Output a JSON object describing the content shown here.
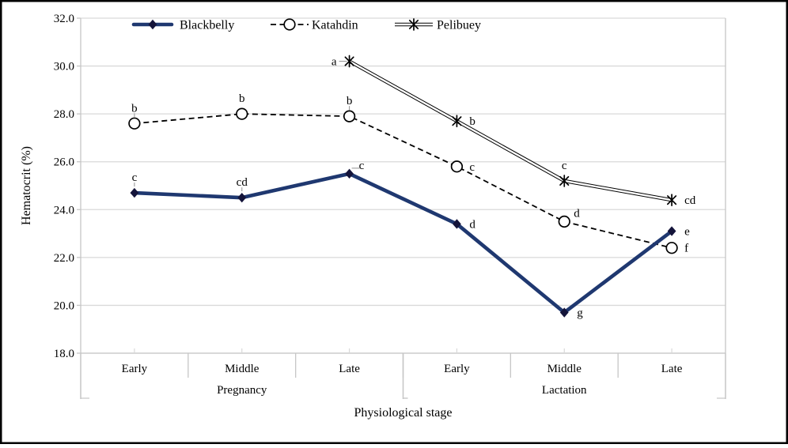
{
  "chart_data": {
    "type": "line",
    "title": "",
    "xlabel": "Physiological stage",
    "ylabel": "Hematocrit (%)",
    "ylim": [
      18,
      32
    ],
    "grid": true,
    "legend_position": "top",
    "yticks": [
      {
        "value": 18,
        "label": "18.0"
      },
      {
        "value": 20,
        "label": "20.0"
      },
      {
        "value": 22,
        "label": "22.0"
      },
      {
        "value": 24,
        "label": "24.0"
      },
      {
        "value": 26,
        "label": "26.0"
      },
      {
        "value": 28,
        "label": "28.0"
      },
      {
        "value": 30,
        "label": "30.0"
      },
      {
        "value": 32,
        "label": "32.0"
      }
    ],
    "categories": [
      "Early",
      "Middle",
      "Late",
      "Early",
      "Middle",
      "Late"
    ],
    "groups": [
      {
        "label": "Pregnancy",
        "from": 0,
        "to": 3
      },
      {
        "label": "Lactation",
        "from": 3,
        "to": 6
      }
    ],
    "series": [
      {
        "name": "Blackbelly",
        "color": "#1F3870",
        "marker_color": "#14143a",
        "line_style": "solid-thick",
        "marker": "diamond",
        "values": [
          24.7,
          24.5,
          25.5,
          23.4,
          19.7,
          23.1
        ],
        "point_labels": [
          "c",
          "cd",
          "c",
          "d",
          "g",
          "e"
        ],
        "label_sides": [
          "top",
          "top",
          "top-right",
          "right",
          "right",
          "right"
        ],
        "leaders": [
          "v",
          "v",
          "h",
          null,
          null,
          null
        ]
      },
      {
        "name": "Katahdin",
        "color": "#000000",
        "marker_color": "#000000",
        "line_style": "dashed",
        "marker": "circle-open",
        "values": [
          27.6,
          28.0,
          27.9,
          25.8,
          23.5,
          22.4
        ],
        "point_labels": [
          "b",
          "b",
          "b",
          "c",
          "d",
          "f"
        ],
        "label_sides": [
          "top",
          "top",
          "top",
          "right",
          "top-right",
          "right"
        ],
        "leaders": [
          "v",
          null,
          "v",
          null,
          null,
          null
        ]
      },
      {
        "name": "Pelibuey",
        "color": "#000000",
        "marker_color": "#000000",
        "line_style": "double",
        "marker": "asterisk",
        "values": [
          null,
          null,
          30.2,
          27.7,
          25.2,
          24.4
        ],
        "point_labels": [
          null,
          null,
          "a",
          "b",
          "c",
          "cd"
        ],
        "label_sides": [
          null,
          null,
          "left",
          "right",
          "top",
          "right"
        ],
        "leaders": [
          null,
          null,
          "h",
          null,
          null,
          null
        ]
      }
    ],
    "colors": {
      "grid": "#D9D9D9",
      "axis": "#C6C6C6",
      "frame": "#000000",
      "background": "#FFFFFF",
      "leader": "#9a9a9a"
    }
  }
}
